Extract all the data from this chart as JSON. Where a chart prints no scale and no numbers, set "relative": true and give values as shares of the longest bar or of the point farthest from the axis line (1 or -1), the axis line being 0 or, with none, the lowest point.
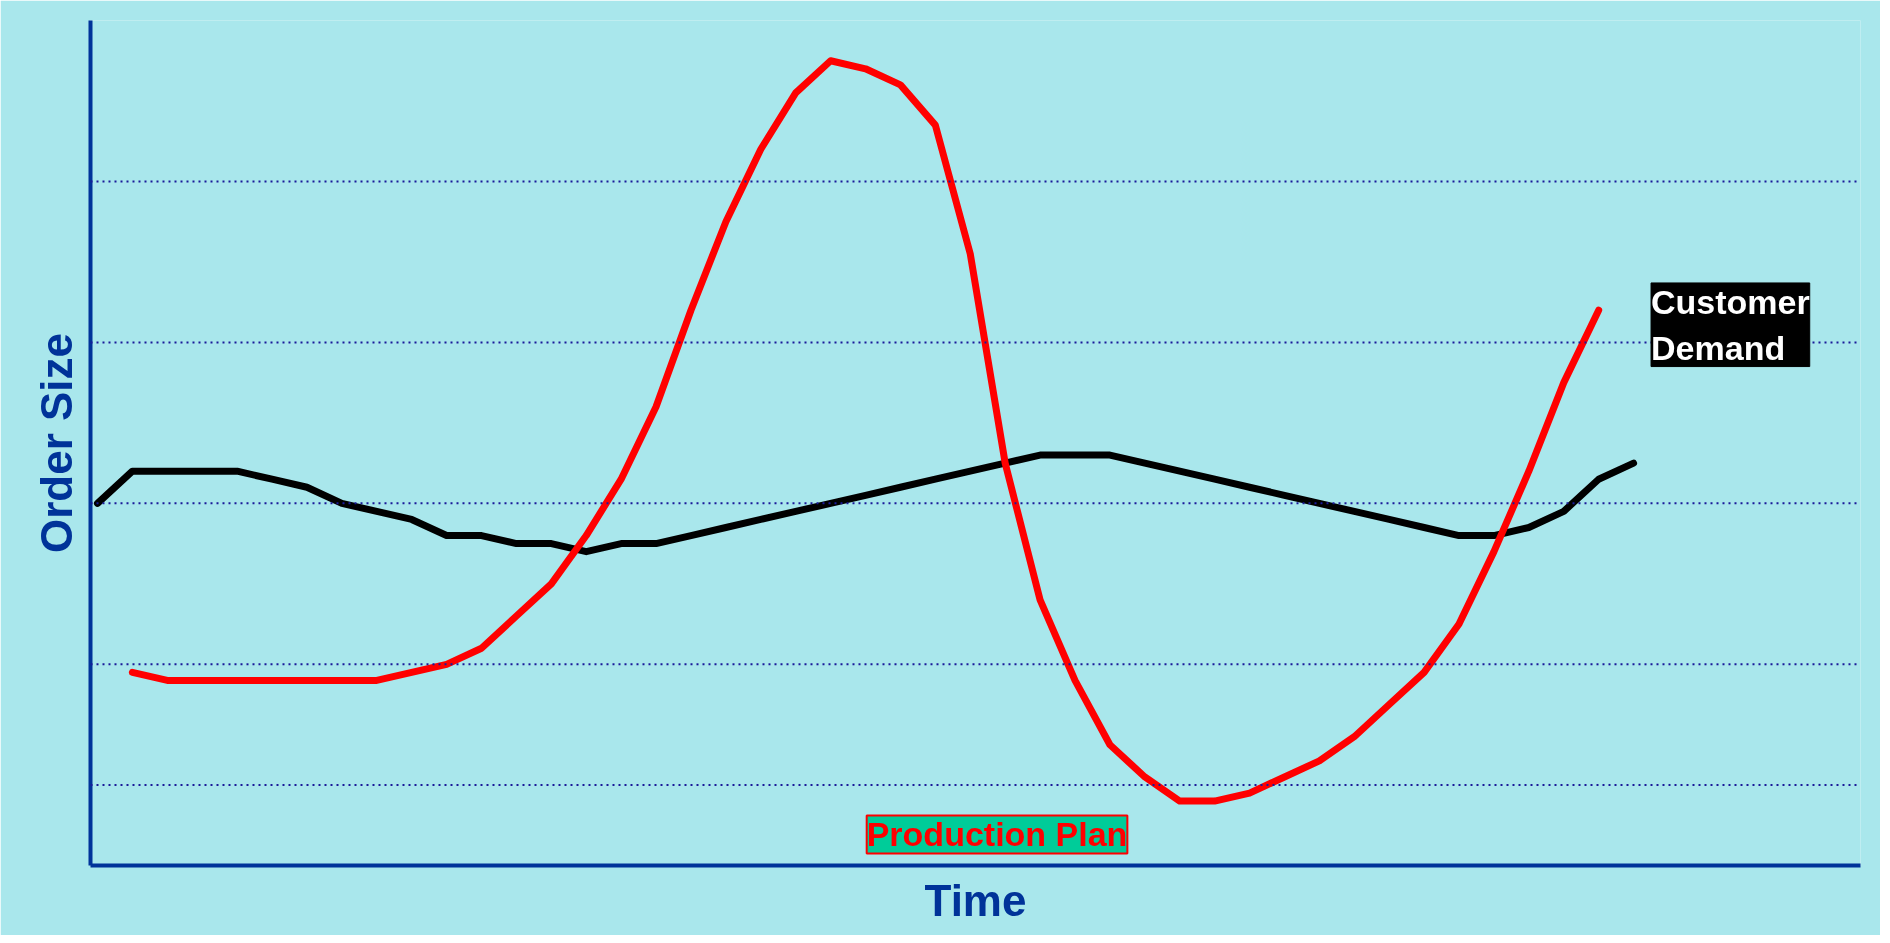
{
  "chart_data": {
    "type": "line",
    "relative": true,
    "xlabel": "Time",
    "ylabel": "Order Size",
    "categories": [
      null,
      null,
      null,
      null,
      null,
      null,
      null,
      null,
      null,
      null,
      null,
      null,
      null,
      null,
      null,
      null,
      null,
      null,
      null,
      null,
      null,
      null,
      null,
      null,
      null,
      null,
      null,
      null,
      null,
      null,
      null,
      null,
      null,
      null,
      null,
      null,
      null,
      null,
      null,
      null,
      null,
      null,
      null,
      null,
      null
    ],
    "series": [
      {
        "name": "Customer Demand",
        "color": "#000000",
        "values": [
          0.45,
          0.49,
          0.49,
          0.49,
          0.49,
          0.48,
          0.47,
          0.45,
          0.44,
          0.43,
          0.41,
          0.41,
          0.4,
          0.4,
          0.39,
          0.4,
          0.4,
          0.41,
          0.42,
          0.43,
          0.44,
          0.45,
          0.46,
          0.47,
          0.48,
          0.49,
          0.5,
          0.51,
          0.51,
          0.51,
          0.5,
          0.49,
          0.48,
          0.47,
          0.46,
          0.45,
          0.44,
          0.43,
          0.42,
          0.41,
          0.41,
          0.42,
          0.44,
          0.48,
          0.5
        ]
      },
      {
        "name": "Production Plan",
        "color": "#ff0000",
        "values": [
          null,
          0.24,
          0.23,
          0.23,
          0.23,
          0.23,
          0.23,
          0.23,
          0.23,
          0.24,
          0.25,
          0.27,
          0.31,
          0.35,
          0.41,
          0.48,
          0.57,
          0.69,
          0.8,
          0.89,
          0.96,
          1.0,
          0.99,
          0.97,
          0.92,
          0.76,
          0.5,
          0.33,
          0.23,
          0.15,
          0.11,
          0.08,
          0.08,
          0.09,
          0.11,
          0.13,
          0.16,
          0.2,
          0.24,
          0.3,
          0.39,
          0.49,
          0.6,
          0.69,
          null
        ]
      }
    ],
    "ref_lines": [
      {
        "axis": "y",
        "value": 0.85,
        "color": "#1a1a99",
        "line_style": "dotted"
      },
      {
        "axis": "y",
        "value": 0.65,
        "color": "#1a1a99",
        "line_style": "dotted"
      },
      {
        "axis": "y",
        "value": 0.45,
        "color": "#1a1a99",
        "line_style": "dotted"
      },
      {
        "axis": "y",
        "value": 0.25,
        "color": "#1a1a99",
        "line_style": "dotted"
      },
      {
        "axis": "y",
        "value": 0.1,
        "color": "#1a1a99",
        "line_style": "dotted"
      }
    ],
    "legend": false,
    "marker": "none",
    "line_style": "solid"
  }
}
